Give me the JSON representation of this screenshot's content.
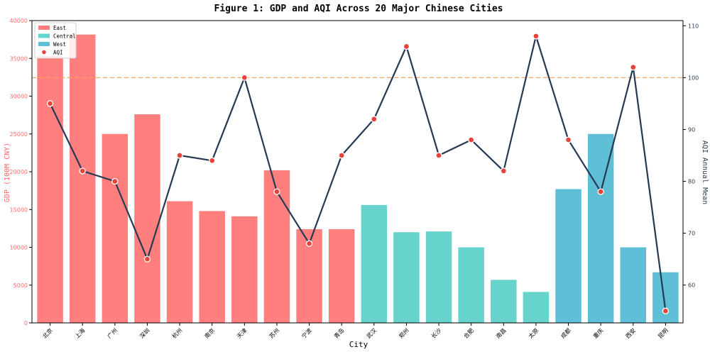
{
  "chart_data": {
    "type": "bar",
    "title": "Figure 1: GDP and AQI Across 20 Major Chinese Cities",
    "xlabel": "City",
    "ylabel_left": "GDP (100M CNY)",
    "ylabel_right": "AQI Annual Mean",
    "categories": [
      "北京",
      "上海",
      "广州",
      "深圳",
      "杭州",
      "南京",
      "天津",
      "苏州",
      "宁波",
      "青岛",
      "武汉",
      "郑州",
      "长沙",
      "合肥",
      "南昌",
      "太原",
      "成都",
      "重庆",
      "西安",
      "昆明"
    ],
    "region": [
      "East",
      "East",
      "East",
      "East",
      "East",
      "East",
      "East",
      "East",
      "East",
      "East",
      "Central",
      "Central",
      "Central",
      "Central",
      "Central",
      "Central",
      "West",
      "West",
      "West",
      "West"
    ],
    "series": [
      {
        "name": "GDP",
        "axis": "left",
        "values": [
          35300,
          38150,
          25000,
          27600,
          16100,
          14800,
          14100,
          20200,
          12400,
          12400,
          15600,
          12000,
          12100,
          10000,
          5700,
          4100,
          17700,
          25000,
          10000,
          6700
        ]
      },
      {
        "name": "AQI",
        "axis": "right",
        "values": [
          95,
          82,
          80,
          65,
          85,
          84,
          100,
          78,
          68,
          85,
          92,
          106,
          85,
          88,
          82,
          108,
          88,
          78,
          102,
          55
        ]
      }
    ],
    "ylim_left": [
      0,
      40000
    ],
    "yticks_left": [
      0,
      5000,
      10000,
      15000,
      20000,
      25000,
      30000,
      35000,
      40000
    ],
    "ylim_right": [
      52.7,
      111
    ],
    "yticks_right": [
      60,
      70,
      80,
      90,
      100,
      110
    ],
    "reference_line": {
      "axis": "right",
      "value": 100
    },
    "legend": {
      "placement": "top-left",
      "entries": [
        {
          "label": "East",
          "color": "#ff7f7f",
          "kind": "bar"
        },
        {
          "label": "Central",
          "color": "#66d4cc",
          "kind": "bar"
        },
        {
          "label": "West",
          "color": "#5fbfd6",
          "kind": "bar"
        },
        {
          "label": "AQI",
          "color": "#e8433a",
          "kind": "marker"
        }
      ]
    },
    "colors": {
      "East": "#ff7f7f",
      "Central": "#66d4cc",
      "West": "#5fbfd6",
      "aqi_line": "#253a52",
      "aqi_marker": "#e8433a",
      "ref_line": "#f4a460",
      "left_axis": "#ff6b6b",
      "right_axis": "#2c3e50"
    },
    "grid": false
  }
}
